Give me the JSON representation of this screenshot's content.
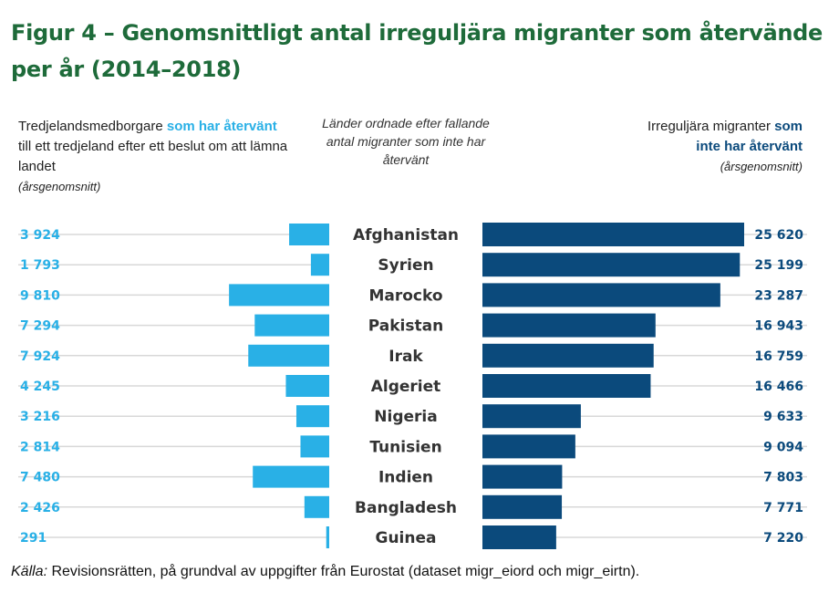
{
  "title": "Figur 4 – Genomsnittligt antal irreguljära migranter som återvände per år (2014–2018)",
  "left_header": {
    "part1": "Tredjelandsmedborgare ",
    "highlight": "som har återvänt",
    "part2": " till ett tredjeland efter ett beslut om att lämna landet",
    "sub": "(årsgenomsnitt)"
  },
  "center_header": "Länder ordnade efter fallande antal migranter som inte har återvänt",
  "right_header": {
    "part1": "Irreguljära migranter ",
    "highlight": "som inte har återvänt",
    "sub": "(årsgenomsnitt)"
  },
  "source": {
    "label": "Källa:",
    "text": " Revisionsrätten, på grundval av uppgifter från Eurostat (dataset migr_eiord och migr_eirtn)."
  },
  "colors": {
    "returned": "#29b0e6",
    "not_returned": "#0b4a7c",
    "title": "#1e6b3a",
    "gridline": "#d8d8d8"
  },
  "chart_data": {
    "type": "bar",
    "categories": [
      "Afghanistan",
      "Syrien",
      "Marocko",
      "Pakistan",
      "Irak",
      "Algeriet",
      "Nigeria",
      "Tunisien",
      "Indien",
      "Bangladesh",
      "Guinea"
    ],
    "series": [
      {
        "name": "som har återvänt",
        "values": [
          3924,
          1793,
          9810,
          7294,
          7924,
          4245,
          3216,
          2814,
          7480,
          2426,
          291
        ],
        "labels": [
          "3 924",
          "1 793",
          "9 810",
          "7 294",
          "7 924",
          "4 245",
          "3 216",
          "2 814",
          "7 480",
          "2 426",
          "291"
        ]
      },
      {
        "name": "som inte har återvänt",
        "values": [
          25620,
          25199,
          23287,
          16943,
          16759,
          16466,
          9633,
          9094,
          7803,
          7771,
          7220
        ],
        "labels": [
          "25 620",
          "25 199",
          "23 287",
          "16 943",
          "16 759",
          "16 466",
          "9 633",
          "9 094",
          "7 803",
          "7 771",
          "7 220"
        ]
      }
    ],
    "xlim": [
      0,
      25620
    ],
    "grid": true
  }
}
